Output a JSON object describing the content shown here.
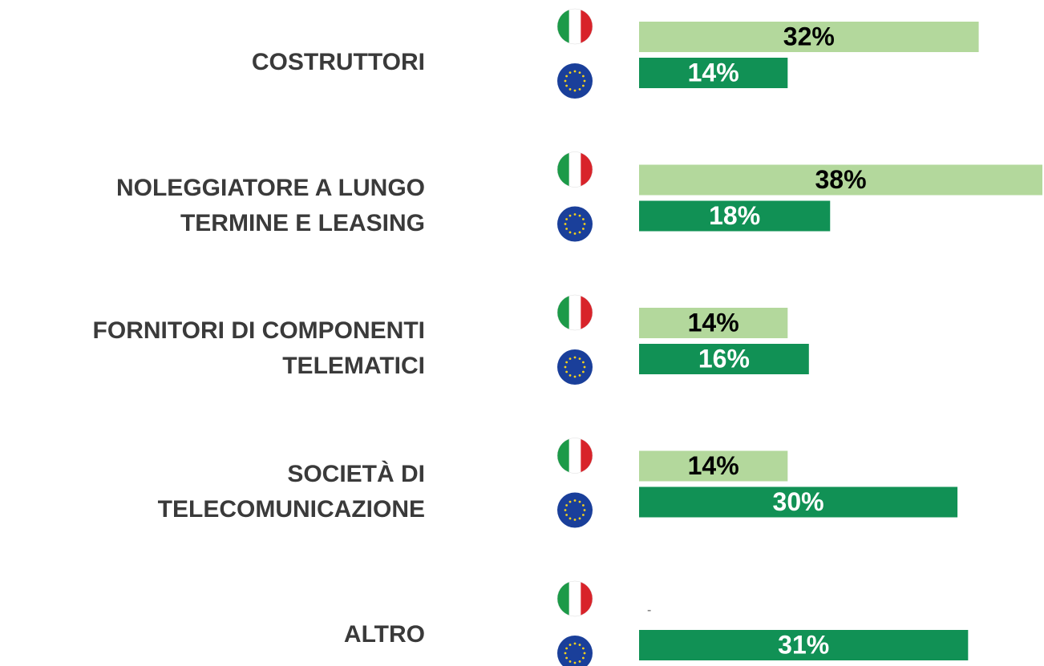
{
  "chart_data": {
    "type": "bar",
    "categories": [
      "COSTRUTTORI",
      "NOLEGGIATORE A LUNGO\nTERMINE E LEASING",
      "FORNITORI DI COMPONENTI\nTELEMATICI",
      "SOCIETÀ DI\nTELECOMUNICAZIONE",
      "ALTRO"
    ],
    "series": [
      {
        "color": "#b3d89c",
        "values": [
          32,
          38,
          14,
          14,
          null
        ],
        "value_labels": [
          "32%",
          "38%",
          "14%",
          "14%",
          "-"
        ]
      },
      {
        "color": "#119155",
        "values": [
          14,
          18,
          16,
          30,
          31
        ],
        "value_labels": [
          "14%",
          "18%",
          "16%",
          "30%",
          "31%"
        ]
      }
    ]
  }
}
